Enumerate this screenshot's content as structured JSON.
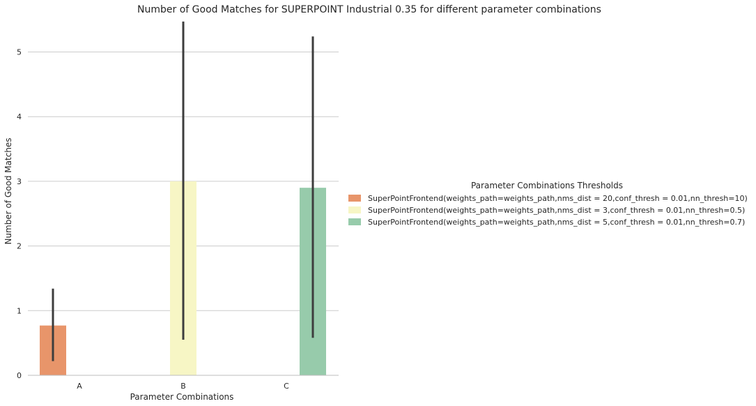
{
  "chart_data": {
    "type": "bar",
    "title": "Number of Good Matches for SUPERPOINT Industrial 0.35 for different parameter combinations",
    "xlabel": "Parameter Combinations",
    "ylabel": "Number of Good Matches",
    "categories": [
      "A",
      "B",
      "C"
    ],
    "ylim": [
      0,
      5.5
    ],
    "yticks": [
      0,
      1,
      2,
      3,
      4,
      5
    ],
    "grid": true,
    "legend": {
      "title": "Parameter Combinations Thresholds",
      "placement": "outside-right"
    },
    "series": [
      {
        "name": "SuperPointFrontend(weights_path=weights_path,nms_dist = 20,conf_thresh = 0.01,nn_thresh=10)",
        "color": "#e8956a",
        "category": "A",
        "value": 0.77,
        "error": [
          0.22,
          1.34
        ]
      },
      {
        "name": "SuperPointFrontend(weights_path=weights_path,nms_dist = 3,conf_thresh = 0.01,nn_thresh=0.5)",
        "color": "#f7f6c5",
        "category": "B",
        "value": 3.0,
        "error": [
          0.55,
          5.47
        ]
      },
      {
        "name": "SuperPointFrontend(weights_path=weights_path,nms_dist = 5,conf_thresh = 0.01,nn_thresh=0.7)",
        "color": "#97cbab",
        "category": "C",
        "value": 2.9,
        "error": [
          0.58,
          5.24
        ]
      }
    ]
  }
}
